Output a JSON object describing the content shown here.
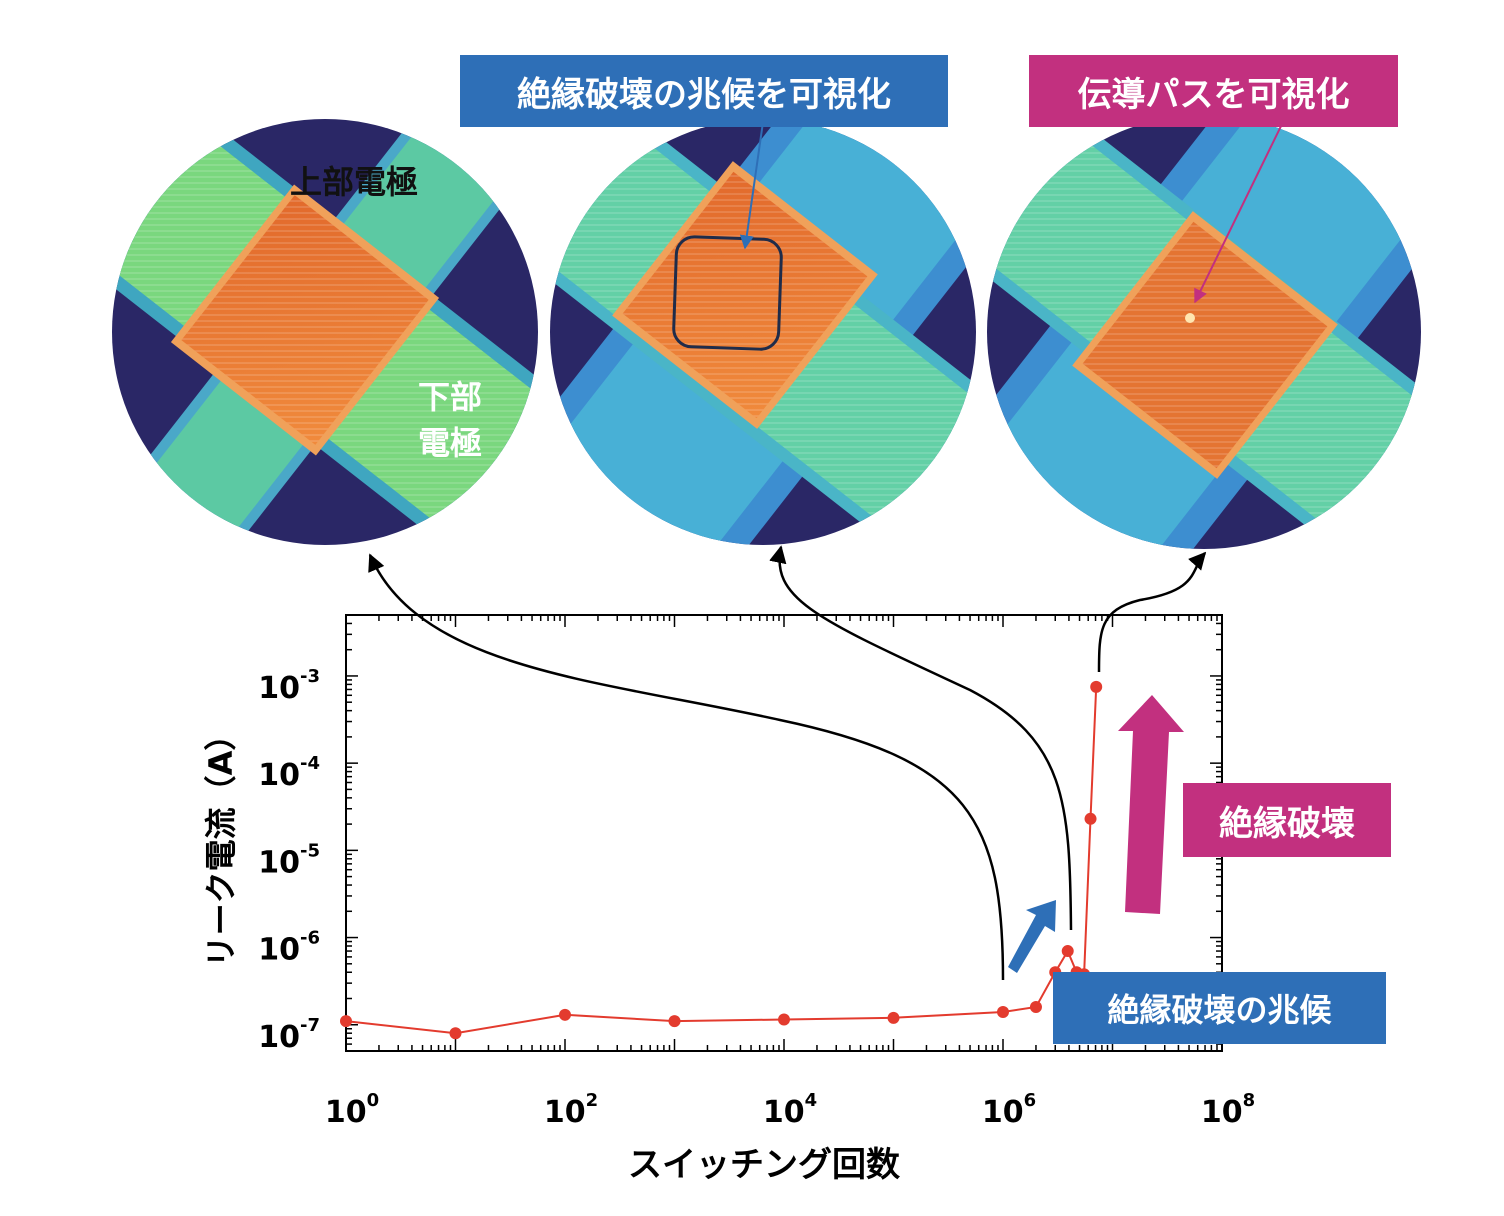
{
  "labels": {
    "precursor_visualized": "絶縁破壊の兆候を可視化",
    "path_visualized": "伝導パスを可視化",
    "top_electrode": "上部電極",
    "bottom_electrode_line1": "下部",
    "bottom_electrode_line2": "電極",
    "breakdown": "絶縁破壊",
    "breakdown_sign": "絶縁破壊の兆候"
  },
  "colors": {
    "data_line": "#e33b2e",
    "blue_box": "#2e6fb7",
    "magenta_box": "#c2307f",
    "connector": "#000000"
  },
  "chart_data": {
    "type": "scatter",
    "xlabel": "スイッチング回数",
    "ylabel": "リーク電流（A）",
    "xscale": "log",
    "yscale": "log",
    "xlim": [
      1,
      100000000
    ],
    "ylim": [
      5e-08,
      0.005
    ],
    "x_ticks": [
      {
        "base": "10",
        "exp": "0",
        "value": 1
      },
      {
        "base": "10",
        "exp": "2",
        "value": 100
      },
      {
        "base": "10",
        "exp": "4",
        "value": 10000
      },
      {
        "base": "10",
        "exp": "6",
        "value": 1000000
      },
      {
        "base": "10",
        "exp": "8",
        "value": 100000000
      }
    ],
    "y_ticks": [
      {
        "base": "10",
        "exp": "-7",
        "value": 1e-07
      },
      {
        "base": "10",
        "exp": "-6",
        "value": 1e-06
      },
      {
        "base": "10",
        "exp": "-5",
        "value": 1e-05
      },
      {
        "base": "10",
        "exp": "-4",
        "value": 0.0001
      },
      {
        "base": "10",
        "exp": "-3",
        "value": 0.001
      }
    ],
    "series": [
      {
        "x": [
          1,
          10,
          100,
          1000,
          10000,
          100000,
          1000000,
          2000000,
          3000000,
          3900000,
          4700000,
          5500000,
          6300000,
          7100000
        ],
        "y": [
          1.1e-07,
          8e-08,
          1.3e-07,
          1.1e-07,
          1.15e-07,
          1.2e-07,
          1.4e-07,
          1.6e-07,
          4e-07,
          7e-07,
          4e-07,
          3.8e-07,
          2.3e-05,
          0.00075
        ]
      }
    ],
    "grid": false
  }
}
